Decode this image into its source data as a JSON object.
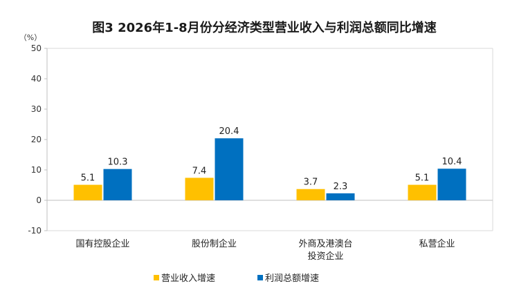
{
  "chart_data": {
    "type": "bar",
    "title": "图3  2026年1-8月份分经济类型营业收入与利润总额同比增速",
    "unit_label": "（%）",
    "ylim": [
      -10,
      50
    ],
    "yticks": [
      -10,
      0,
      10,
      20,
      30,
      40,
      50
    ],
    "categories": [
      [
        "国有控股企业"
      ],
      [
        "股份制企业"
      ],
      [
        "外商及港澳台",
        "投资企业"
      ],
      [
        "私营企业"
      ]
    ],
    "series": [
      {
        "name": "营业收入增速",
        "color": "#FFC000",
        "values": [
          5.1,
          7.4,
          3.7,
          5.1
        ]
      },
      {
        "name": "利润总额增速",
        "color": "#0070C0",
        "values": [
          10.3,
          20.4,
          2.3,
          10.4
        ]
      }
    ],
    "grid": false,
    "legend_position": "bottom"
  }
}
